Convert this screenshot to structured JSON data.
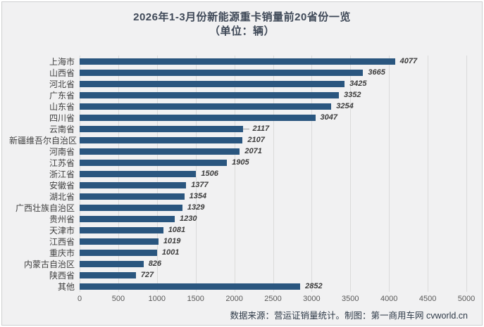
{
  "footer": {
    "source_note": "数据来源：营运证销量统计。制图：第一商用车网 cvworld.cn"
  },
  "chart_data": {
    "type": "bar",
    "orientation": "horizontal",
    "title": "2026年1-3月份新能源重卡销量前20省份一览",
    "subtitle": "（单位：辆）",
    "categories": [
      "上海市",
      "山西省",
      "河北省",
      "广东省",
      "山东省",
      "四川省",
      "云南省",
      "新疆维吾尔自治区",
      "河南省",
      "江苏省",
      "浙江省",
      "安徽省",
      "湖北省",
      "广西壮族自治区",
      "贵州省",
      "天津市",
      "江西省",
      "重庆市",
      "内蒙古自治区",
      "陕西省",
      "其他"
    ],
    "values": [
      4077,
      3665,
      3425,
      3352,
      3254,
      3047,
      2117,
      2107,
      2071,
      1905,
      1506,
      1377,
      1354,
      1329,
      1230,
      1081,
      1019,
      1001,
      826,
      727,
      2852
    ],
    "xlim": [
      0,
      5000
    ],
    "x_ticks": [
      0,
      500,
      1000,
      1500,
      2000,
      2500,
      3000,
      3500,
      4000,
      4500,
      5000
    ],
    "grid": true,
    "legend": false,
    "value_labels": true,
    "leader_line_category": "云南省",
    "bar_color": "#2a567f",
    "background_color": "#f1f1f2",
    "gridline_color": "#dadada",
    "title_color": "#3e4857"
  }
}
